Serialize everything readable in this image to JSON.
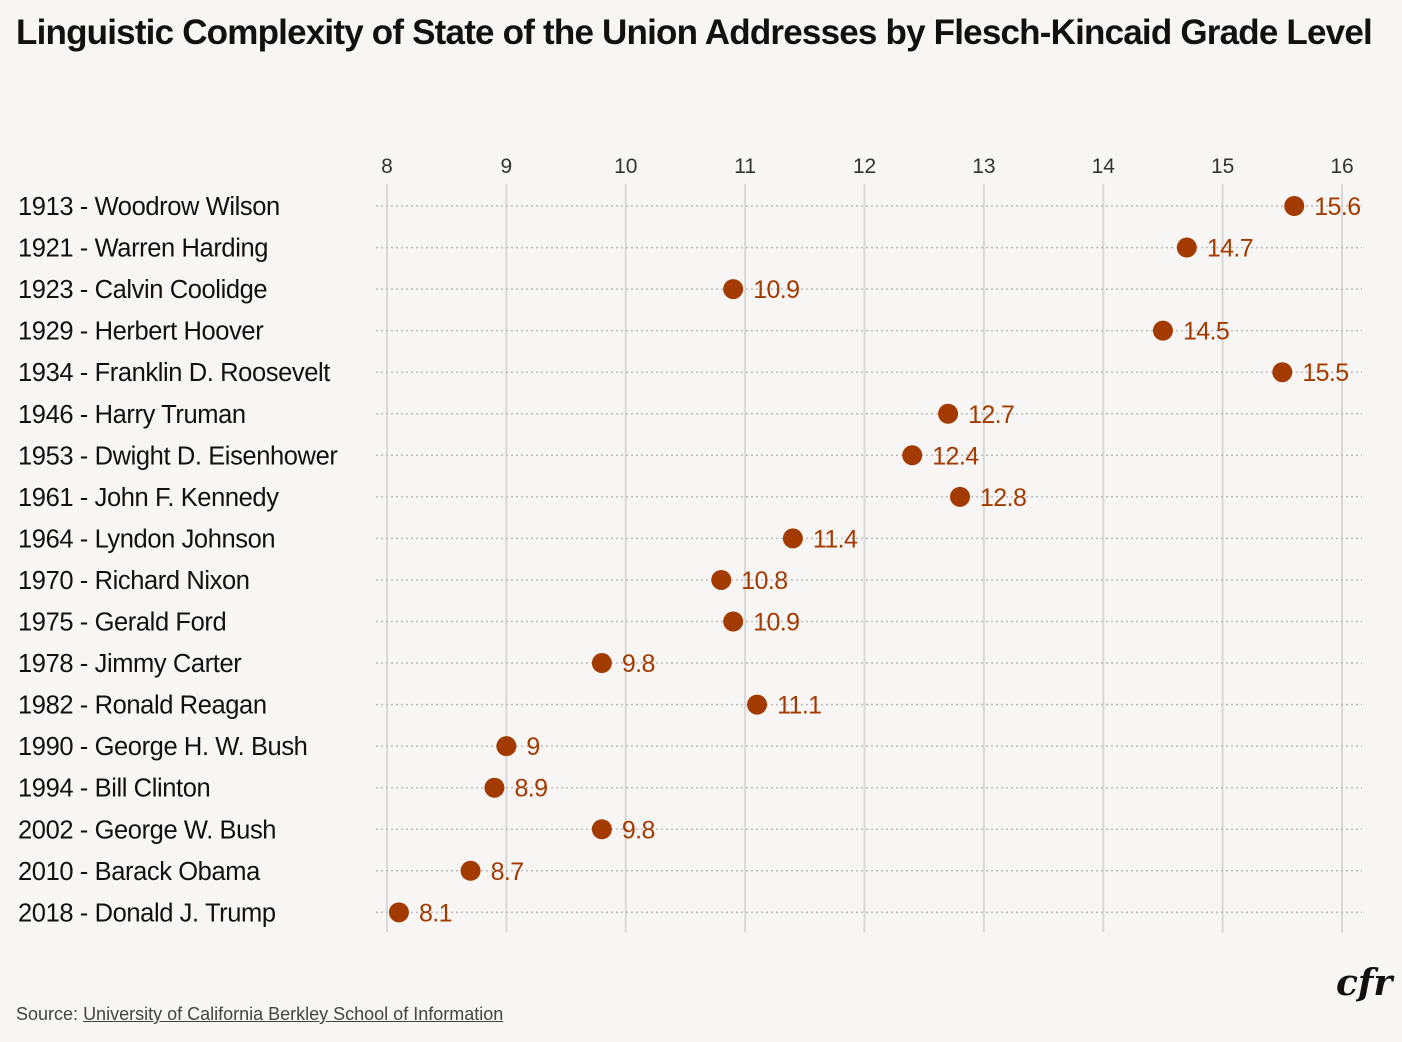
{
  "chart_data": {
    "type": "scatter",
    "title": "Linguistic Complexity of State of the Union Addresses by Flesch-Kincaid Grade Level",
    "xlabel": "",
    "ylabel": "",
    "xlim": [
      8,
      16
    ],
    "xticks": [
      8,
      9,
      10,
      11,
      12,
      13,
      14,
      15,
      16
    ],
    "grid": true,
    "categories": [
      "1913 - Woodrow Wilson",
      "1921 - Warren Harding",
      "1923 - Calvin Coolidge",
      "1929 - Herbert Hoover",
      "1934 - Franklin D. Roosevelt",
      "1946 - Harry Truman",
      "1953 - Dwight D. Eisenhower",
      "1961 - John F. Kennedy",
      "1964 - Lyndon Johnson",
      "1970 - Richard Nixon",
      "1975 - Gerald Ford",
      "1978 - Jimmy Carter",
      "1982 - Ronald Reagan",
      "1990 - George H. W. Bush",
      "1994 - Bill Clinton",
      "2002 - George W. Bush",
      "2010 - Barack Obama",
      "2018 - Donald J. Trump"
    ],
    "values": [
      15.6,
      14.7,
      10.9,
      14.5,
      15.5,
      12.7,
      12.4,
      12.8,
      11.4,
      10.8,
      10.9,
      9.8,
      11.1,
      9,
      8.9,
      9.8,
      8.7,
      8.1
    ],
    "color": "#a33a00"
  },
  "source_label": "Source:",
  "source_link": "University of California Berkley School of Information",
  "logo": "cfr"
}
